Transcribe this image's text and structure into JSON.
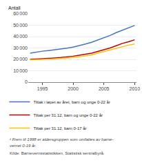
{
  "chart_data": {
    "type": "line",
    "ylabel": "Antall",
    "x": [
      1993,
      1994,
      1995,
      1996,
      1997,
      1998,
      1999,
      2000,
      2001,
      2002,
      2003,
      2004,
      2005,
      2006,
      2007,
      2008,
      2009,
      2010
    ],
    "series": [
      {
        "name": "Tiltak i løpet av året, barn og unge 0-22 år",
        "color": "#4472C4",
        "values": [
          25500,
          26500,
          27200,
          27800,
          28400,
          29000,
          29800,
          30800,
          32000,
          33500,
          35000,
          37000,
          39000,
          41000,
          43500,
          45500,
          47500,
          49800
        ]
      },
      {
        "name": "Tiltak per 31.12, barn og unge 0-22 år",
        "color": "#C00000",
        "values": [
          20000,
          20200,
          20500,
          20800,
          21200,
          21600,
          22000,
          22800,
          23600,
          24500,
          25500,
          27000,
          28500,
          30000,
          32000,
          34000,
          35500,
          37200
        ]
      },
      {
        "name": "Tiltak per 31.12, barn 0-17 år",
        "color": "#FFC000",
        "values": [
          19500,
          19600,
          19800,
          20100,
          20400,
          20700,
          21000,
          21600,
          22200,
          23000,
          24000,
          25400,
          26800,
          28000,
          29800,
          31200,
          32500,
          33500
        ]
      }
    ],
    "xlim": [
      1992.7,
      2010.3
    ],
    "xticks": [
      1995,
      2000,
      2005,
      2010
    ],
    "ylim": [
      0,
      60000
    ],
    "yticks": [
      0,
      {
        "value": 10000,
        "label": "10 000"
      },
      {
        "value": 20000,
        "label": "20 000"
      },
      {
        "value": 30000,
        "label": "30 000"
      },
      {
        "value": 40000,
        "label": "40 000"
      },
      {
        "value": 50000,
        "label": "50 000"
      },
      {
        "value": 60000,
        "label": "60 000"
      }
    ],
    "grid": true,
    "legend": "bottom",
    "annotations": [
      "¹ Frem til 1998 er aldersgruppen som omfattes av barne-",
      "vernet 0-19 år.",
      "Kilde: Barnevernsstatistikken, Statistisk sentralbyrå."
    ]
  }
}
